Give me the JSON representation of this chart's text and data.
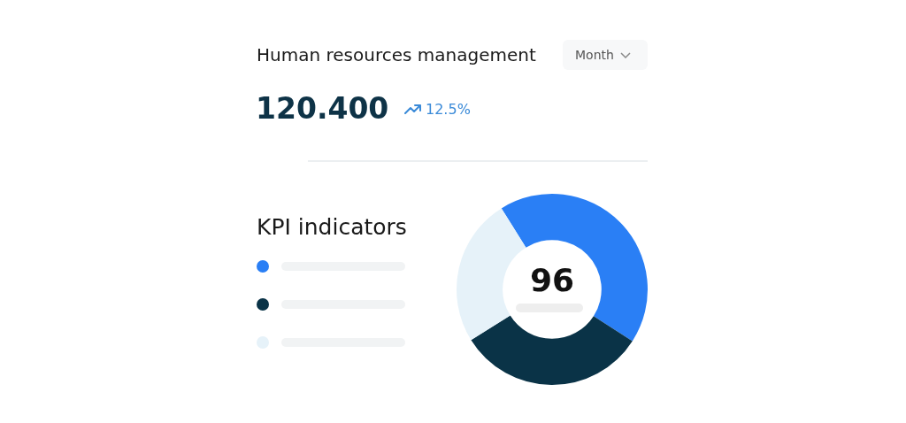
{
  "chart_data": {
    "type": "donut",
    "title": "Human resources management",
    "subtitle": "KPI indicators",
    "categories": [
      null,
      null,
      null
    ],
    "values": [
      43,
      32,
      25
    ],
    "colors": [
      "#2a7ff5",
      "#0a3347",
      "#e6f2f9"
    ],
    "annotations": [
      "Month",
      "120.400",
      "12.5%",
      "96"
    ]
  }
}
